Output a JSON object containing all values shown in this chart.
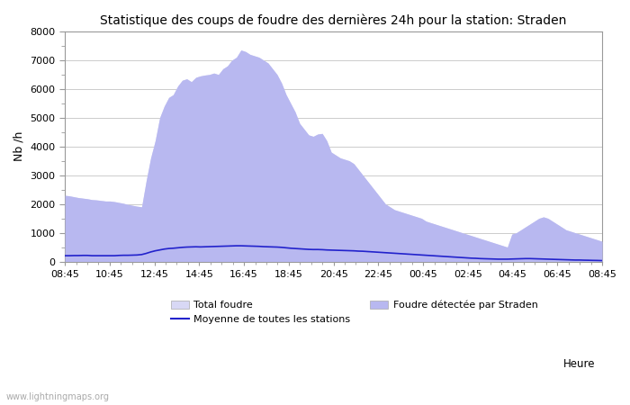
{
  "title": "Statistique des coups de foudre des dernières 24h pour la station: Straden",
  "xlabel_heure": "Heure",
  "ylabel": "Nb /h",
  "ylim": [
    0,
    8000
  ],
  "yticks_major": [
    0,
    1000,
    2000,
    3000,
    4000,
    5000,
    6000,
    7000,
    8000
  ],
  "yticks_minor": [
    500,
    1500,
    2500,
    3500,
    4500,
    5500,
    6500,
    7500
  ],
  "xtick_labels": [
    "08:45",
    "10:45",
    "12:45",
    "14:45",
    "16:45",
    "18:45",
    "20:45",
    "22:45",
    "00:45",
    "02:45",
    "04:45",
    "06:45",
    "08:45"
  ],
  "watermark": "www.lightningmaps.org",
  "legend_total": "Total foudre",
  "legend_mean": "Moyenne de toutes les stations",
  "legend_local": "Foudre détectée par Straden",
  "fill_total_color": "#d8d8f5",
  "fill_local_color": "#b8b8f0",
  "line_mean_color": "#2222cc",
  "background_color": "#ffffff",
  "grid_color": "#cccccc",
  "spine_color": "#999999",
  "total_foudre": [
    2300,
    2280,
    2250,
    2220,
    2200,
    2180,
    2150,
    2140,
    2120,
    2100,
    2100,
    2080,
    2050,
    2020,
    1980,
    1950,
    1920,
    1900,
    2800,
    3600,
    4200,
    5000,
    5400,
    5700,
    5800,
    6100,
    6300,
    6350,
    6250,
    6400,
    6450,
    6480,
    6500,
    6550,
    6500,
    6700,
    6800,
    7000,
    7100,
    7350,
    7300,
    7200,
    7150,
    7100,
    7000,
    6900,
    6700,
    6500,
    6200,
    5800,
    5500,
    5200,
    4800,
    4600,
    4400,
    4350,
    4430,
    4450,
    4200,
    3800,
    3700,
    3600,
    3550,
    3500,
    3400,
    3200,
    3000,
    2800,
    2600,
    2400,
    2200,
    2000,
    1900,
    1800,
    1750,
    1700,
    1650,
    1600,
    1550,
    1500,
    1400,
    1350,
    1300,
    1250,
    1200,
    1150,
    1100,
    1050,
    1000,
    950,
    900,
    850,
    800,
    750,
    700,
    650,
    600,
    550,
    500,
    950,
    1000,
    1100,
    1200,
    1300,
    1400,
    1500,
    1550,
    1500,
    1400,
    1300,
    1200,
    1100,
    1050,
    1000,
    950,
    900,
    850,
    800,
    750,
    700
  ],
  "local_foudre": [
    2300,
    2280,
    2250,
    2220,
    2200,
    2180,
    2150,
    2140,
    2120,
    2100,
    2100,
    2080,
    2050,
    2020,
    1980,
    1950,
    1920,
    1900,
    2800,
    3600,
    4200,
    5000,
    5400,
    5700,
    5800,
    6100,
    6300,
    6350,
    6250,
    6400,
    6450,
    6480,
    6500,
    6550,
    6500,
    6700,
    6800,
    7000,
    7100,
    7350,
    7300,
    7200,
    7150,
    7100,
    7000,
    6900,
    6700,
    6500,
    6200,
    5800,
    5500,
    5200,
    4800,
    4600,
    4400,
    4350,
    4430,
    4450,
    4200,
    3800,
    3700,
    3600,
    3550,
    3500,
    3400,
    3200,
    3000,
    2800,
    2600,
    2400,
    2200,
    2000,
    1900,
    1800,
    1750,
    1700,
    1650,
    1600,
    1550,
    1500,
    1400,
    1350,
    1300,
    1250,
    1200,
    1150,
    1100,
    1050,
    1000,
    950,
    900,
    850,
    800,
    750,
    700,
    650,
    600,
    550,
    500,
    950,
    1000,
    1100,
    1200,
    1300,
    1400,
    1500,
    1550,
    1500,
    1400,
    1300,
    1200,
    1100,
    1050,
    1000,
    950,
    900,
    850,
    800,
    750,
    700
  ],
  "mean_line": [
    200,
    200,
    205,
    205,
    210,
    210,
    200,
    200,
    200,
    200,
    200,
    200,
    210,
    215,
    215,
    220,
    225,
    240,
    280,
    330,
    370,
    400,
    430,
    450,
    460,
    475,
    490,
    500,
    505,
    510,
    505,
    510,
    515,
    520,
    525,
    530,
    535,
    540,
    545,
    545,
    540,
    535,
    530,
    525,
    515,
    510,
    505,
    500,
    490,
    475,
    460,
    450,
    440,
    430,
    420,
    415,
    415,
    410,
    400,
    395,
    390,
    385,
    380,
    375,
    370,
    360,
    355,
    345,
    335,
    325,
    315,
    305,
    295,
    285,
    275,
    265,
    255,
    245,
    235,
    225,
    215,
    205,
    195,
    185,
    175,
    165,
    155,
    145,
    135,
    125,
    115,
    110,
    100,
    95,
    90,
    85,
    80,
    80,
    80,
    85,
    90,
    95,
    100,
    100,
    95,
    90,
    85,
    80,
    75,
    70,
    65,
    60,
    55,
    50,
    50,
    45,
    42,
    38,
    35,
    30
  ]
}
